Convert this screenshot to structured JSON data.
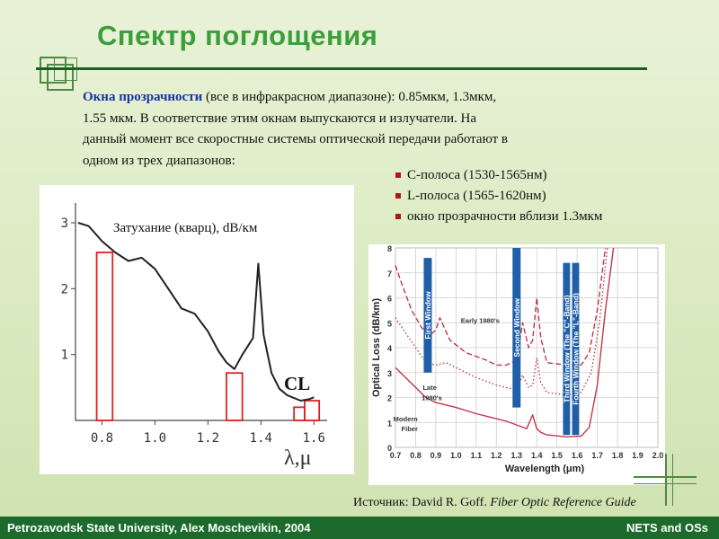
{
  "title": "Спектр поглощения",
  "intro": {
    "highlight": "Окна прозрачности",
    "line1_rest": " (все в инфракрасном диапазоне): 0.85мкм, 1.3мкм,",
    "line2": "1.55 мкм. В соответствие этим окнам выпускаются и излучатели. На",
    "line3": "данный момент все скоростные системы оптической передачи работают в",
    "line4": "одном из трех диапазонов:"
  },
  "bullets": [
    "С-полоса (1530-1565нм)",
    "L-полоса (1565-1620нм)",
    "окно прозрачности вблизи 1.3мкм"
  ],
  "source": {
    "prefix": "Источник: David R. Goff. ",
    "book": "Fiber Optic Reference Guide"
  },
  "footer": {
    "left": "Petrozavodsk State University, Alex Moschevikin, 2004",
    "right": "NETS and OSs"
  },
  "colors": {
    "title": "#3b9e3b",
    "highlight": "#1a32a8",
    "footer_bg": "#1c6b2c",
    "window_box": "#e02020",
    "band_label": "#1f5fa8",
    "curve_red": "#c0384a"
  },
  "chart_data": [
    {
      "type": "line",
      "title": "Затухание (кварц), dB/км",
      "xlabel": "λ,μ",
      "ylabel": "",
      "xlim": [
        0.7,
        1.65
      ],
      "ylim": [
        0,
        3.3
      ],
      "xticks": [
        "0.8",
        "1.0",
        "1.2",
        "1.4",
        "1.6"
      ],
      "xtick_values": [
        0.8,
        1.0,
        1.2,
        1.4,
        1.6
      ],
      "yticks": [
        "1",
        "2",
        "3"
      ],
      "ytick_values": [
        1,
        2,
        3
      ],
      "grid": false,
      "series": [
        {
          "x": [
            0.71,
            0.75,
            0.8,
            0.85,
            0.9,
            0.95,
            1.0,
            1.05,
            1.1,
            1.15,
            1.2,
            1.24,
            1.27,
            1.3,
            1.33,
            1.37,
            1.39,
            1.41,
            1.44,
            1.47,
            1.5,
            1.55,
            1.58,
            1.6
          ],
          "y": [
            3.0,
            2.95,
            2.72,
            2.55,
            2.42,
            2.47,
            2.3,
            2.0,
            1.7,
            1.62,
            1.35,
            1.05,
            0.88,
            0.78,
            1.0,
            1.25,
            2.38,
            1.3,
            0.72,
            0.48,
            0.38,
            0.3,
            0.32,
            0.35
          ]
        }
      ],
      "windows": [
        {
          "x0": 0.78,
          "x1": 0.84,
          "y1": 2.55
        },
        {
          "x0": 1.27,
          "x1": 1.33,
          "y1": 0.72
        },
        {
          "x0": 1.525,
          "x1": 1.565,
          "y1": 0.2
        },
        {
          "x0": 1.565,
          "x1": 1.62,
          "y1": 0.3
        }
      ],
      "annotation": "CL"
    },
    {
      "type": "line",
      "title": "",
      "xlabel": "Wavelength (μm)",
      "ylabel": "Optical Loss (dB/km)",
      "xlim": [
        0.7,
        2.0
      ],
      "ylim": [
        0,
        8
      ],
      "xticks": [
        "0.7",
        "0.8",
        "0.9",
        "1.0",
        "1.1",
        "1.2",
        "1.3",
        "1.4",
        "1.5",
        "1.6",
        "1.7",
        "1.8",
        "1.9",
        "2.0"
      ],
      "xtick_values": [
        0.7,
        0.8,
        0.9,
        1.0,
        1.1,
        1.2,
        1.3,
        1.4,
        1.5,
        1.6,
        1.7,
        1.8,
        1.9,
        2.0
      ],
      "yticks": [
        "0",
        "1",
        "2",
        "3",
        "4",
        "5",
        "6",
        "7",
        "8"
      ],
      "ytick_values": [
        0,
        1,
        2,
        3,
        4,
        5,
        6,
        7,
        8
      ],
      "grid": true,
      "series": [
        {
          "name": "Early 1980's",
          "style": "dashed",
          "x": [
            0.7,
            0.73,
            0.78,
            0.83,
            0.87,
            0.9,
            0.92,
            0.97,
            1.05,
            1.15,
            1.2,
            1.25,
            1.3,
            1.33,
            1.36,
            1.38,
            1.4,
            1.42,
            1.45,
            1.55,
            1.62,
            1.66,
            1.7,
            1.74
          ],
          "y": [
            7.3,
            6.6,
            5.5,
            4.8,
            4.5,
            4.7,
            5.2,
            4.3,
            3.8,
            3.5,
            3.3,
            3.3,
            3.5,
            5.0,
            4.0,
            4.3,
            6.0,
            4.4,
            3.4,
            3.3,
            3.3,
            3.8,
            5.5,
            8.0
          ]
        },
        {
          "name": "Late 1980's",
          "style": "dotted",
          "x": [
            0.7,
            0.75,
            0.8,
            0.85,
            0.9,
            0.95,
            1.0,
            1.1,
            1.2,
            1.25,
            1.3,
            1.33,
            1.36,
            1.38,
            1.4,
            1.42,
            1.45,
            1.55,
            1.62,
            1.67,
            1.71,
            1.75
          ],
          "y": [
            5.2,
            4.6,
            4.0,
            3.4,
            3.3,
            3.4,
            3.2,
            2.8,
            2.5,
            2.4,
            2.3,
            2.9,
            2.4,
            2.5,
            3.6,
            2.6,
            2.2,
            2.1,
            2.2,
            3.0,
            5.0,
            8.0
          ]
        },
        {
          "name": "Modern Fiber",
          "style": "solid",
          "x": [
            0.7,
            0.75,
            0.8,
            0.85,
            0.9,
            0.95,
            1.0,
            1.1,
            1.2,
            1.25,
            1.3,
            1.35,
            1.38,
            1.4,
            1.42,
            1.45,
            1.55,
            1.62,
            1.66,
            1.7,
            1.74,
            1.78
          ],
          "y": [
            3.2,
            2.8,
            2.4,
            2.0,
            1.8,
            1.7,
            1.6,
            1.35,
            1.15,
            1.05,
            0.9,
            0.75,
            1.3,
            0.75,
            0.6,
            0.5,
            0.42,
            0.45,
            0.8,
            2.5,
            5.5,
            8.0
          ]
        }
      ],
      "bands": [
        {
          "label": "First Window",
          "x0": 0.84,
          "x1": 0.88,
          "y0": 3.0,
          "y1": 7.6
        },
        {
          "label": "Second Window",
          "x0": 1.28,
          "x1": 1.32,
          "y0": 1.6,
          "y1": 8.0
        },
        {
          "label": "Third Window (The \"C\"-Band)",
          "x0": 1.53,
          "x1": 1.565,
          "y0": 0.5,
          "y1": 7.4
        },
        {
          "label": "Fourth Window (The \"L\"-Band)",
          "x0": 1.575,
          "x1": 1.61,
          "y0": 0.5,
          "y1": 7.4
        }
      ],
      "curve_labels": [
        {
          "text": "Early 1980's",
          "x": 1.12,
          "y": 5.0
        },
        {
          "text": "Late",
          "x": 0.87,
          "y": 2.3
        },
        {
          "text": "1980's",
          "x": 0.88,
          "y": 1.9
        },
        {
          "text": "Modern",
          "x": 0.75,
          "y": 1.05
        },
        {
          "text": "Fiber",
          "x": 0.77,
          "y": 0.65
        }
      ]
    }
  ]
}
